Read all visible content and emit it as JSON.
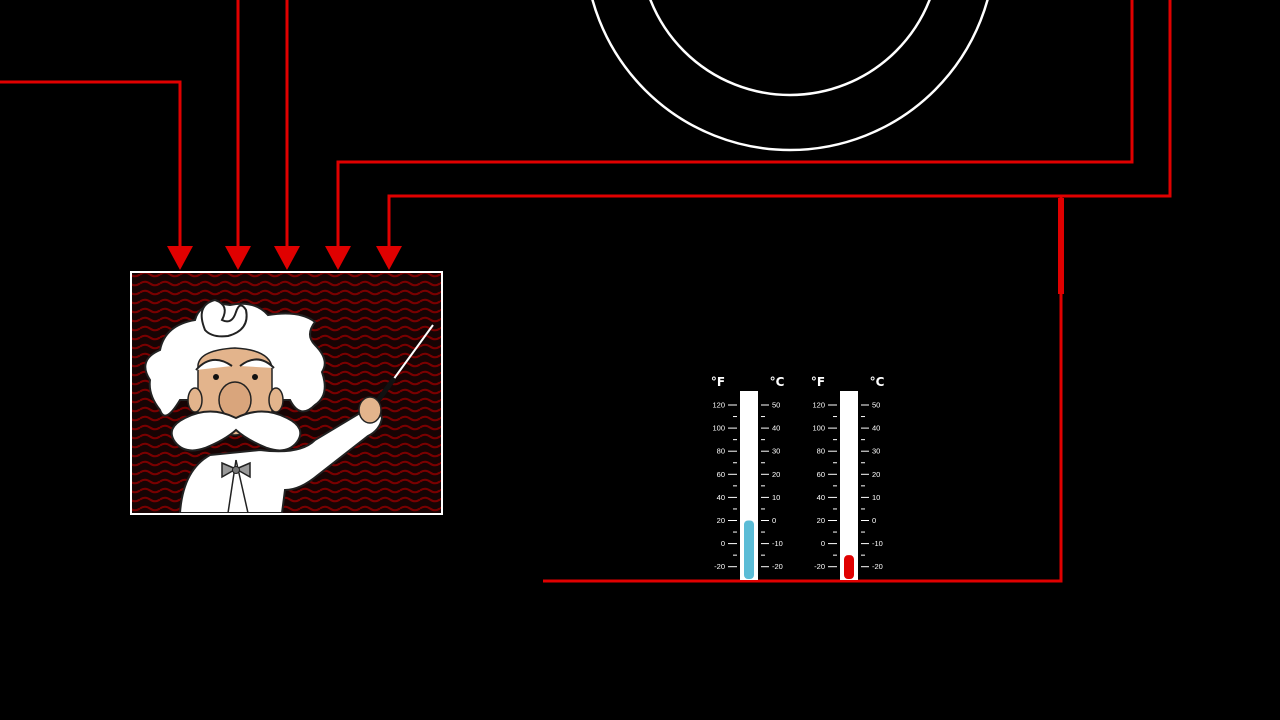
{
  "colors": {
    "background": "#000000",
    "wire": "#e00000",
    "ring": "#ffffff",
    "frame_border": "#ffffff",
    "cold_fluid": "#5bbcd6",
    "hot_fluid": "#e00000",
    "thermometer_body": "#ffffff"
  },
  "icons": {
    "scientist": "scientist-with-pointer-icon",
    "arrow": "arrow-down-icon",
    "ring": "double-ring-icon",
    "thermometer": "thermometer-icon"
  },
  "arrow_count": 5,
  "thermometers": [
    {
      "id": "left",
      "unit_left": "°F",
      "unit_right": "°C",
      "scale_f": [
        "120",
        "100",
        "80",
        "60",
        "40",
        "20",
        "0",
        "-20"
      ],
      "scale_c": [
        "50",
        "40",
        "30",
        "20",
        "10",
        "0",
        "-10",
        "-20"
      ],
      "reading_f": 20,
      "fluid": "cold"
    },
    {
      "id": "right",
      "unit_left": "°F",
      "unit_right": "°C",
      "scale_f": [
        "120",
        "100",
        "80",
        "60",
        "40",
        "20",
        "0",
        "-20"
      ],
      "scale_c": [
        "50",
        "40",
        "30",
        "20",
        "10",
        "0",
        "-10",
        "-20"
      ],
      "reading_f": -10,
      "fluid": "hot"
    }
  ]
}
